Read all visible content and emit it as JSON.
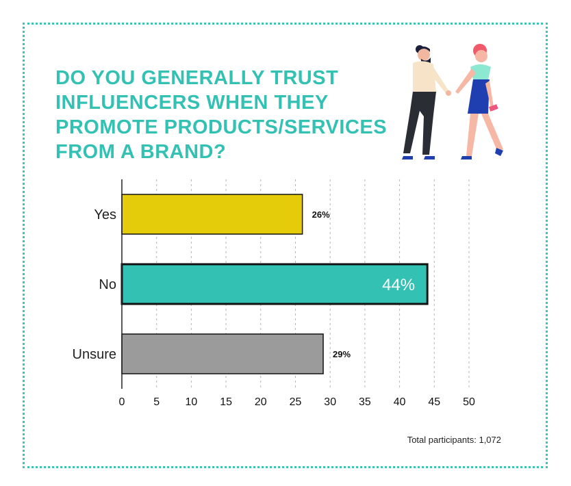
{
  "title": {
    "lines": [
      "DO YOU GENERALLY TRUST",
      "INFLUENCERS WHEN THEY",
      "PROMOTE PRODUCTS/SERVICES",
      "FROM A BRAND?"
    ]
  },
  "footer": {
    "participants": "Total participants: 1,072"
  },
  "colors": {
    "accent": "#33c1b3",
    "frame": "#3cc4b4"
  },
  "illustration": {
    "icon": "couple-holding-hands-illustration"
  },
  "chart_data": {
    "type": "bar",
    "orientation": "horizontal",
    "categories": [
      "Yes",
      "No",
      "Unsure"
    ],
    "values": [
      26,
      44,
      29
    ],
    "labels": [
      "26%",
      "44%",
      "29%"
    ],
    "colors": [
      "#e5cc0b",
      "#33c1b3",
      "#9b9b9b"
    ],
    "highlight": "No",
    "xlim": [
      0,
      50
    ],
    "xticks": [
      0,
      5,
      10,
      15,
      20,
      25,
      30,
      35,
      40,
      45,
      50
    ],
    "grid": true
  }
}
